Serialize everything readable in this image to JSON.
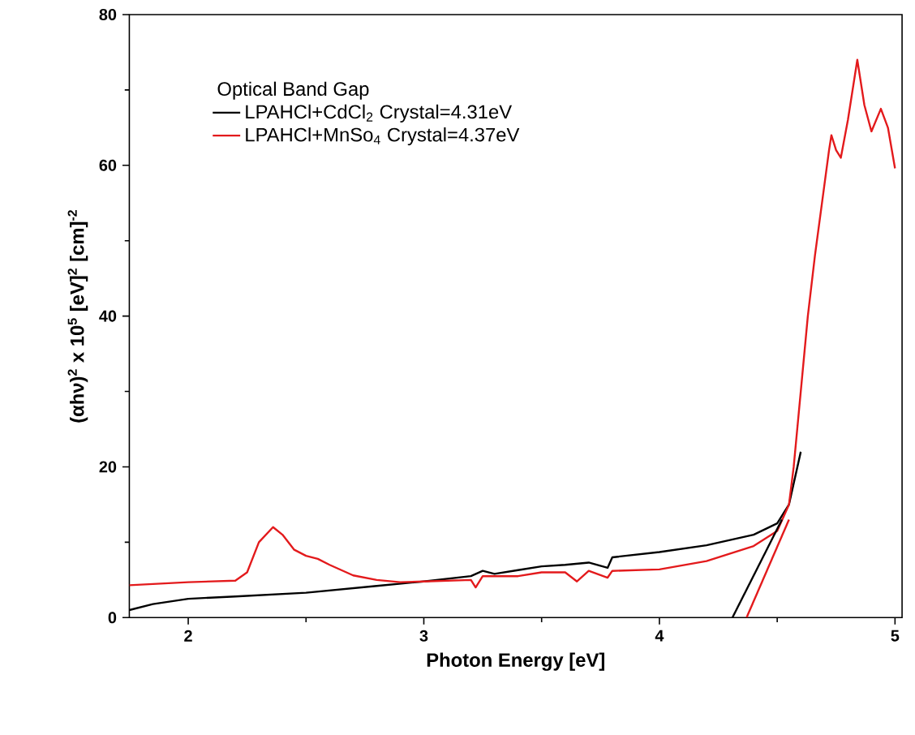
{
  "chart_data": {
    "type": "line",
    "xlabel": "Photon Energy [eV]",
    "ylabel": "(αhν)$^{2}$ x 10$^{5}$ [eV]$^{2}$ [cm]$^{-2}$",
    "legend_title": "Optical Band Gap",
    "legend": "top left",
    "xlim": [
      1.75,
      5.03
    ],
    "ylim": [
      0,
      80
    ],
    "xticks": [
      2,
      3,
      4,
      5
    ],
    "yticks": [
      0,
      20,
      40,
      60,
      80
    ],
    "grid": false,
    "series": [
      {
        "name": "LPAHCl+CdCl$_{2}$ Crystal=4.31eV",
        "color": "#000000",
        "x": [
          1.75,
          1.85,
          2.0,
          2.2,
          2.5,
          2.8,
          3.0,
          3.2,
          3.25,
          3.3,
          3.4,
          3.5,
          3.6,
          3.7,
          3.78,
          3.8,
          4.0,
          4.2,
          4.4,
          4.5,
          4.55,
          4.6
        ],
        "values": [
          1,
          1.8,
          2.5,
          2.8,
          3.3,
          4.2,
          4.8,
          5.5,
          6.2,
          5.8,
          6.3,
          6.8,
          7,
          7.3,
          6.6,
          8,
          8.7,
          9.6,
          11,
          12.5,
          15,
          22
        ]
      },
      {
        "name": "LPAHCl+MnSo$_{4}$ Crystal=4.37eV",
        "color": "#e31a1c",
        "x": [
          1.75,
          2.0,
          2.2,
          2.25,
          2.3,
          2.36,
          2.4,
          2.45,
          2.5,
          2.55,
          2.6,
          2.7,
          2.8,
          2.9,
          3.0,
          3.2,
          3.22,
          3.25,
          3.4,
          3.5,
          3.6,
          3.65,
          3.7,
          3.78,
          3.8,
          4.0,
          4.2,
          4.4,
          4.5,
          4.55,
          4.57,
          4.6,
          4.63,
          4.66,
          4.69,
          4.72,
          4.73,
          4.75,
          4.77,
          4.8,
          4.84,
          4.87,
          4.9,
          4.94,
          4.97,
          5.0
        ],
        "values": [
          4.3,
          4.7,
          4.9,
          6,
          10,
          12,
          11,
          9,
          8.2,
          7.8,
          7,
          5.6,
          5,
          4.7,
          4.8,
          5,
          4,
          5.5,
          5.5,
          6,
          6,
          4.8,
          6.2,
          5.3,
          6.2,
          6.4,
          7.5,
          9.5,
          11.5,
          15,
          20,
          30,
          40,
          48,
          55,
          62,
          64,
          62,
          61,
          66,
          74,
          68,
          64.5,
          67.5,
          65,
          59.6
        ]
      },
      {
        "type": "line",
        "color": "#000000",
        "x": [
          4.31,
          4.52
        ],
        "values": [
          0,
          13
        ]
      },
      {
        "type": "line",
        "color": "#e31a1c",
        "x": [
          4.37,
          4.55
        ],
        "values": [
          0,
          13
        ]
      }
    ]
  }
}
